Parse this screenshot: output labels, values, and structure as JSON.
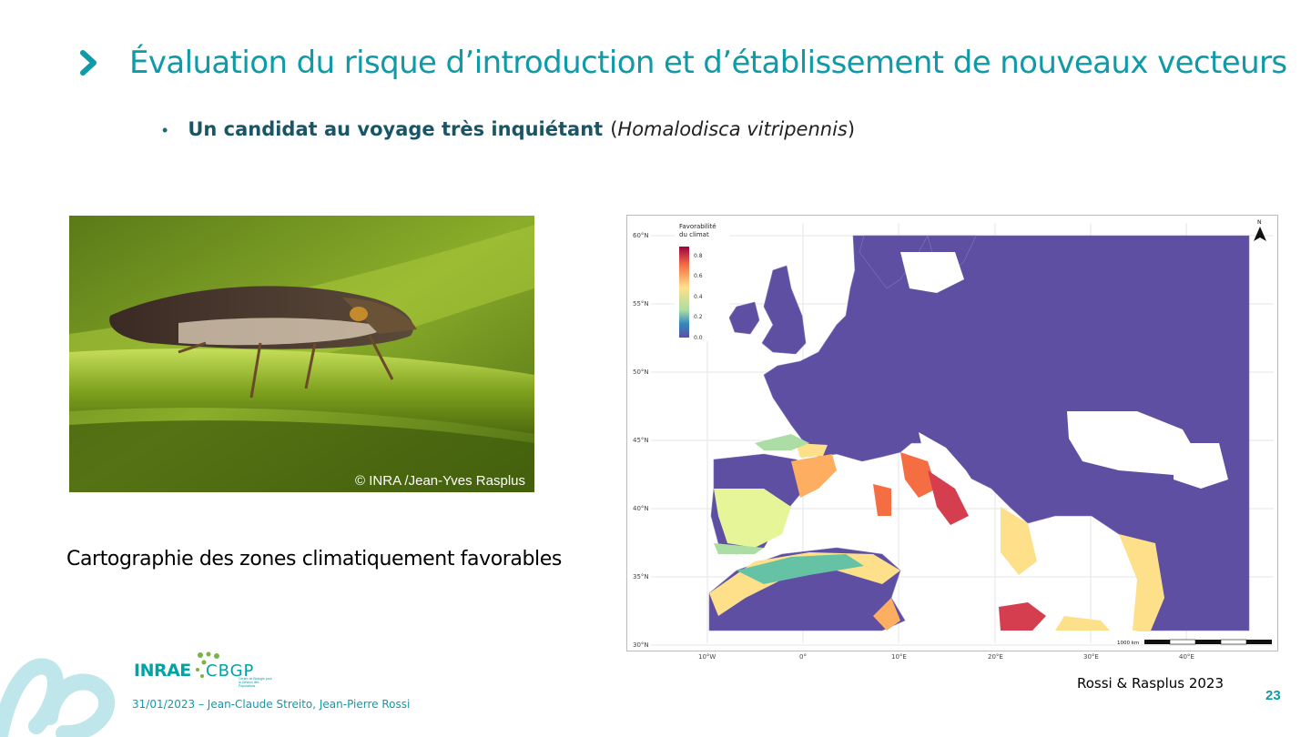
{
  "slide": {
    "title": "Évaluation du risque d’introduction et d’établissement de nouveaux vecteurs",
    "bullet_strong": "Un candidat au voyage très inquiétant",
    "bullet_paren_open": "(",
    "bullet_italic": "Homalodisca vitripennis",
    "bullet_paren_close": ")",
    "photo_credit": "© INRA /Jean-Yves Rasplus",
    "caption": "Cartographie des zones climatiquement favorables",
    "reference": "Rossi & Rasplus 2023",
    "page_number": "23",
    "footer": "31/01/2023 – Jean-Claude Streito, Jean-Pierre Rossi"
  },
  "logos": {
    "inrae": "INRAE",
    "cbgp": "CBGP",
    "cbgp_sub": "Centre de Biologie pour la Gestion des Populations"
  },
  "map": {
    "legend_title_1": "Favorabilité",
    "legend_title_2": "du climat",
    "legend_ticks": [
      "0.8",
      "0.6",
      "0.4",
      "0.2",
      "0.0"
    ],
    "lat_labels": [
      "60°N",
      "55°N",
      "50°N",
      "45°N",
      "40°N",
      "35°N",
      "30°N"
    ],
    "lon_labels": [
      "10°W",
      "0°",
      "10°E",
      "20°E",
      "30°E",
      "40°E"
    ],
    "scale_label": "1000 km",
    "north_label": "N",
    "colors": {
      "unfavorable": "#5e4fa2",
      "high": "#d53e4f",
      "mid": "#fee08b",
      "low": "#66c2a5"
    }
  },
  "colors": {
    "accent": "#0f9aa8",
    "bullet_dark": "#1a5566"
  }
}
